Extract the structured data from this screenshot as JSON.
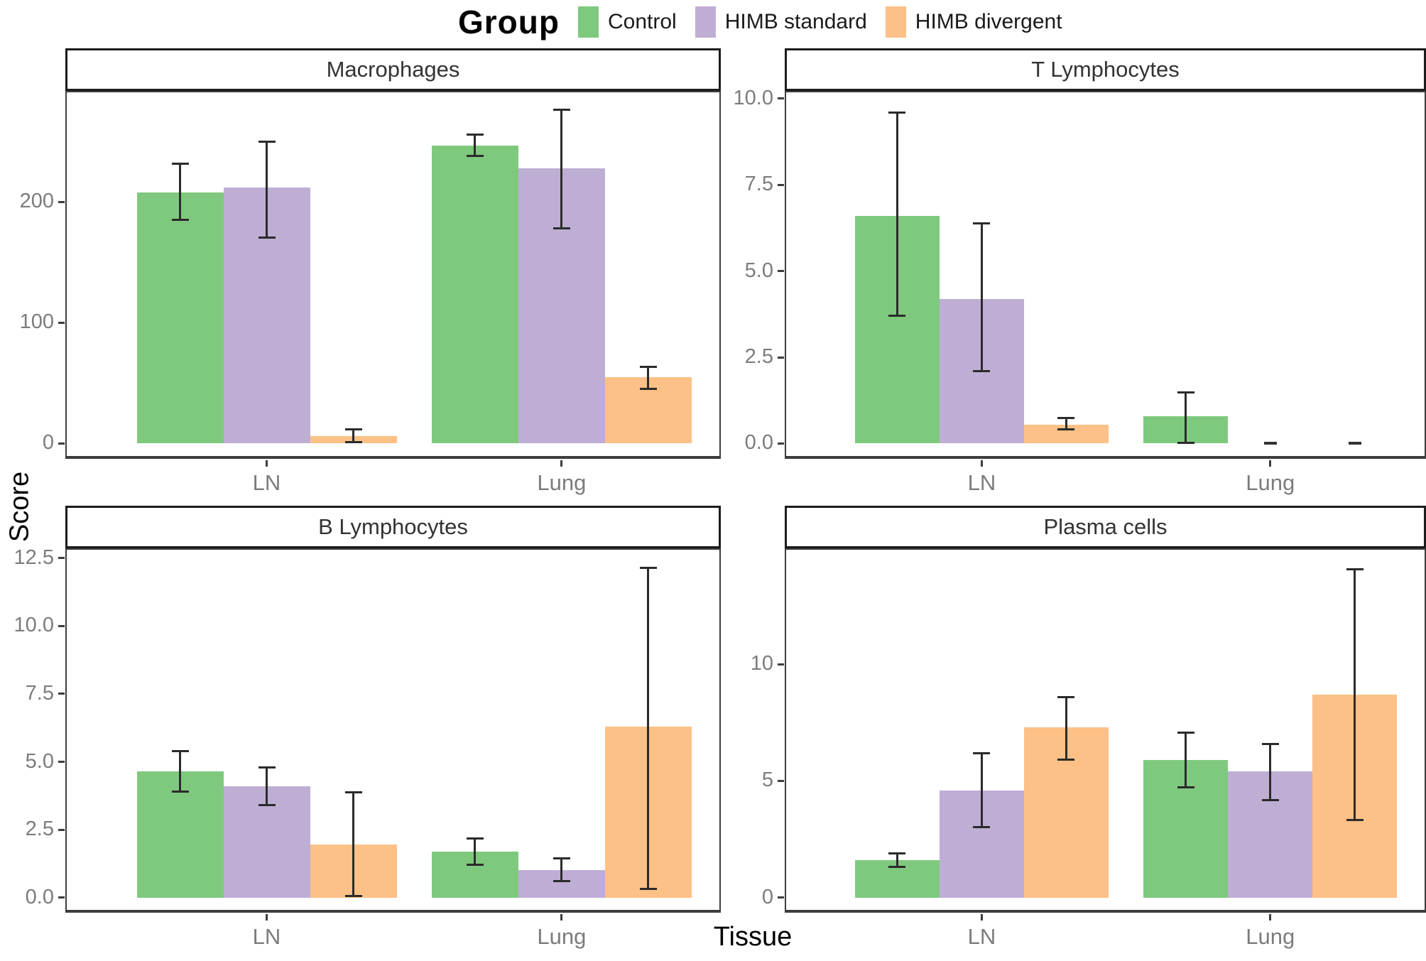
{
  "legend": {
    "title": "Group",
    "items": [
      {
        "label": "Control"
      },
      {
        "label": "HIMB standard"
      },
      {
        "label": "HIMB divergent"
      }
    ]
  },
  "chart_data": {
    "type": "bar",
    "title": "",
    "xlabel": "Tissue",
    "ylabel": "Score",
    "legend_title": "Group",
    "legend_position": "top",
    "grid": false,
    "categories": [
      "LN",
      "Lung"
    ],
    "series": [
      {
        "name": "Control",
        "color": "#7FC97F"
      },
      {
        "name": "HIMB standard",
        "color": "#BEAED4"
      },
      {
        "name": "HIMB divergent",
        "color": "#FDC086"
      }
    ],
    "error_bar_color": "#2b2b2b",
    "facets": [
      {
        "title": "Macrophages",
        "ytick_labels": [
          "0",
          "100",
          "200"
        ],
        "yticks": [
          0,
          100,
          200
        ],
        "ymax": 277,
        "groups": [
          {
            "tissue": "LN",
            "bars": [
              {
                "series": "Control",
                "value": 208,
                "err_low": 185,
                "err_high": 232
              },
              {
                "series": "HIMB standard",
                "value": 212,
                "err_low": 170,
                "err_high": 250
              },
              {
                "series": "HIMB divergent",
                "value": 6,
                "err_low": 1,
                "err_high": 12
              }
            ]
          },
          {
            "tissue": "Lung",
            "bars": [
              {
                "series": "Control",
                "value": 247,
                "err_low": 238,
                "err_high": 256
              },
              {
                "series": "HIMB standard",
                "value": 228,
                "err_low": 178,
                "err_high": 277
              },
              {
                "series": "HIMB divergent",
                "value": 55,
                "err_low": 45,
                "err_high": 64
              }
            ]
          }
        ]
      },
      {
        "title": "T Lymphocytes",
        "ytick_labels": [
          "0.0",
          "2.5",
          "5.0",
          "7.5",
          "10.0"
        ],
        "yticks": [
          0,
          2.5,
          5,
          7.5,
          10
        ],
        "ymax": 9.7,
        "groups": [
          {
            "tissue": "LN",
            "bars": [
              {
                "series": "Control",
                "value": 6.6,
                "err_low": 3.7,
                "err_high": 9.6
              },
              {
                "series": "HIMB standard",
                "value": 4.2,
                "err_low": 2.1,
                "err_high": 6.4
              },
              {
                "series": "HIMB divergent",
                "value": 0.55,
                "err_low": 0.4,
                "err_high": 0.75
              }
            ]
          },
          {
            "tissue": "Lung",
            "bars": [
              {
                "series": "Control",
                "value": 0.8,
                "err_low": 0,
                "err_high": 1.5
              },
              {
                "series": "HIMB standard",
                "value": 0,
                "err_low": null,
                "err_high": null
              },
              {
                "series": "HIMB divergent",
                "value": 0,
                "err_low": null,
                "err_high": null
              }
            ]
          }
        ]
      },
      {
        "title": "B Lymphocytes",
        "ytick_labels": [
          "0.0",
          "2.5",
          "5.0",
          "7.5",
          "10.0",
          "12.5"
        ],
        "yticks": [
          0,
          2.5,
          5,
          7.5,
          10,
          12.5
        ],
        "ymax": 12.2,
        "groups": [
          {
            "tissue": "LN",
            "bars": [
              {
                "series": "Control",
                "value": 4.65,
                "err_low": 3.9,
                "err_high": 5.4
              },
              {
                "series": "HIMB standard",
                "value": 4.1,
                "err_low": 3.4,
                "err_high": 4.8
              },
              {
                "series": "HIMB divergent",
                "value": 1.95,
                "err_low": 0.05,
                "err_high": 3.9
              }
            ]
          },
          {
            "tissue": "Lung",
            "bars": [
              {
                "series": "Control",
                "value": 1.7,
                "err_low": 1.2,
                "err_high": 2.2
              },
              {
                "series": "HIMB standard",
                "value": 1.0,
                "err_low": 0.6,
                "err_high": 1.45
              },
              {
                "series": "HIMB divergent",
                "value": 6.3,
                "err_low": 0.3,
                "err_high": 12.15
              }
            ]
          }
        ]
      },
      {
        "title": "Plasma cells",
        "ytick_labels": [
          "0",
          "5",
          "10"
        ],
        "yticks": [
          0,
          5,
          10
        ],
        "ymax": 14.2,
        "groups": [
          {
            "tissue": "LN",
            "bars": [
              {
                "series": "Control",
                "value": 1.6,
                "err_low": 1.3,
                "err_high": 1.9
              },
              {
                "series": "HIMB standard",
                "value": 4.6,
                "err_low": 3.0,
                "err_high": 6.2
              },
              {
                "series": "HIMB divergent",
                "value": 7.3,
                "err_low": 5.9,
                "err_high": 8.6
              }
            ]
          },
          {
            "tissue": "Lung",
            "bars": [
              {
                "series": "Control",
                "value": 5.9,
                "err_low": 4.7,
                "err_high": 7.1
              },
              {
                "series": "HIMB standard",
                "value": 5.4,
                "err_low": 4.15,
                "err_high": 6.6
              },
              {
                "series": "HIMB divergent",
                "value": 8.7,
                "err_low": 3.3,
                "err_high": 14.1
              }
            ]
          }
        ]
      }
    ]
  }
}
